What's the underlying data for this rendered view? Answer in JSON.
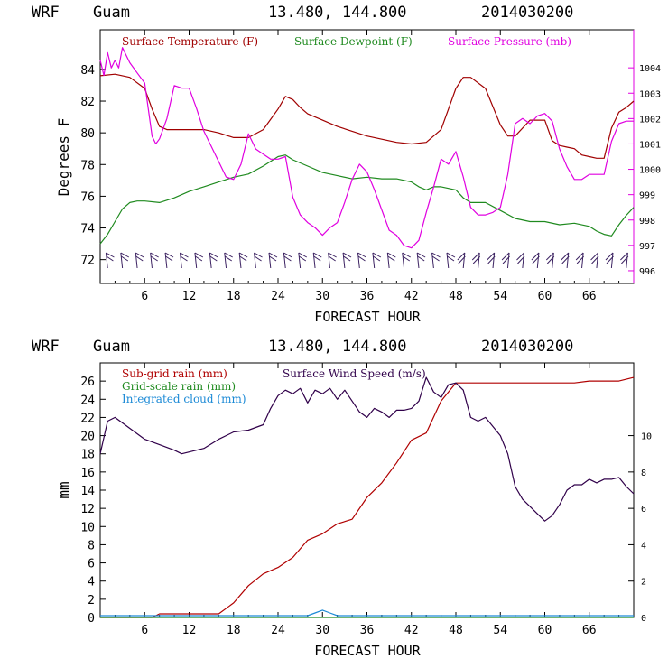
{
  "colors": {
    "temperature": "#a00000",
    "dewpoint": "#1f8a1f",
    "pressure": "#e000e0",
    "subgrid": "#b00000",
    "gridscale": "#1f8a1f",
    "cloud": "#1c8ad6",
    "wind": "#30004a",
    "wind_barb": "#3a2060"
  },
  "chart_data": [
    {
      "type": "line",
      "header": {
        "model": "WRF",
        "location": "Guam",
        "coords": "13.480, 144.800",
        "init": "2014030200"
      },
      "xlabel": "FORECAST HOUR",
      "ylabel": "Degrees F",
      "xlim": [
        0,
        72
      ],
      "ylim": [
        70.5,
        86.5
      ],
      "y2lim": [
        995.5,
        1005.5
      ],
      "xticks": [
        "6",
        "12",
        "18",
        "24",
        "30",
        "36",
        "42",
        "48",
        "54",
        "60",
        "66"
      ],
      "yticks": [
        "72",
        "74",
        "76",
        "78",
        "80",
        "82",
        "84"
      ],
      "y2ticks": [
        "996",
        "997",
        "998",
        "999",
        "1000",
        "1001",
        "1002",
        "1003",
        "1004"
      ],
      "legend": [
        "Surface Temperature (F)",
        "Surface Dewpoint (F)",
        "Surface Pressure (mb)"
      ],
      "series": [
        {
          "name": "Surface Temperature (F)",
          "axis": "left",
          "x": [
            0,
            2,
            4,
            6,
            7,
            8,
            9,
            10,
            12,
            14,
            16,
            18,
            20,
            22,
            24,
            25,
            26,
            27,
            28,
            30,
            32,
            34,
            36,
            38,
            40,
            42,
            44,
            46,
            47,
            48,
            49,
            50,
            52,
            54,
            55,
            56,
            58,
            60,
            61,
            62,
            63,
            64,
            65,
            66,
            67,
            68,
            69,
            70,
            71,
            72
          ],
          "y": [
            83.6,
            83.7,
            83.5,
            82.8,
            81.5,
            80.4,
            80.2,
            80.2,
            80.2,
            80.2,
            80,
            79.7,
            79.7,
            80.2,
            81.5,
            82.3,
            82.1,
            81.6,
            81.2,
            80.8,
            80.4,
            80.1,
            79.8,
            79.6,
            79.4,
            79.3,
            79.4,
            80.2,
            81.5,
            82.8,
            83.5,
            83.5,
            82.8,
            80.5,
            79.8,
            79.8,
            80.8,
            80.8,
            79.5,
            79.2,
            79.1,
            79,
            78.6,
            78.5,
            78.4,
            78.4,
            80.3,
            81.3,
            81.6,
            82
          ]
        },
        {
          "name": "Surface Dewpoint (F)",
          "axis": "left",
          "x": [
            0,
            1,
            2,
            3,
            4,
            5,
            6,
            8,
            10,
            12,
            14,
            16,
            18,
            20,
            22,
            24,
            25,
            26,
            27,
            28,
            30,
            32,
            34,
            36,
            38,
            40,
            42,
            43,
            44,
            45,
            46,
            48,
            49,
            50,
            52,
            54,
            56,
            58,
            60,
            62,
            64,
            66,
            67,
            68,
            69,
            70,
            71,
            72
          ],
          "y": [
            73,
            73.6,
            74.4,
            75.2,
            75.6,
            75.7,
            75.7,
            75.6,
            75.9,
            76.3,
            76.6,
            76.9,
            77.2,
            77.4,
            77.9,
            78.5,
            78.6,
            78.3,
            78.1,
            77.9,
            77.5,
            77.3,
            77.1,
            77.2,
            77.1,
            77.1,
            76.9,
            76.6,
            76.4,
            76.6,
            76.6,
            76.4,
            75.9,
            75.6,
            75.6,
            75.1,
            74.6,
            74.4,
            74.4,
            74.2,
            74.3,
            74.1,
            73.8,
            73.6,
            73.5,
            74.2,
            74.8,
            75.3
          ]
        },
        {
          "name": "Surface Pressure (mb)",
          "axis": "right",
          "x": [
            0,
            0.5,
            1,
            1.5,
            2,
            2.5,
            3,
            4,
            5,
            6,
            7,
            7.5,
            8,
            9,
            10,
            11,
            12,
            13,
            14,
            15,
            16,
            17,
            18,
            19,
            20,
            21,
            22,
            23,
            24,
            25,
            26,
            27,
            28,
            29,
            30,
            31,
            32,
            33,
            34,
            35,
            36,
            37,
            38,
            39,
            40,
            41,
            42,
            43,
            44,
            45,
            46,
            47,
            48,
            49,
            50,
            51,
            52,
            53,
            54,
            55,
            56,
            57,
            58,
            59,
            60,
            61,
            62,
            63,
            64,
            65,
            66,
            67,
            68,
            69,
            70,
            71,
            72
          ],
          "y": [
            1004.3,
            1003.7,
            1004.6,
            1004.0,
            1004.3,
            1004.0,
            1004.8,
            1004.2,
            1003.8,
            1003.4,
            1001.3,
            1001.0,
            1001.2,
            1002.0,
            1003.3,
            1003.2,
            1003.2,
            1002.4,
            1001.5,
            1000.9,
            1000.3,
            999.7,
            999.6,
            1000.2,
            1001.4,
            1000.8,
            1000.6,
            1000.4,
            1000.4,
            1000.5,
            998.9,
            998.2,
            997.9,
            997.7,
            997.4,
            997.7,
            997.9,
            998.7,
            999.6,
            1000.2,
            999.9,
            999.2,
            998.4,
            997.6,
            997.4,
            997.0,
            996.9,
            997.2,
            998.3,
            999.3,
            1000.4,
            1000.2,
            1000.7,
            999.7,
            998.5,
            998.2,
            998.2,
            998.3,
            998.5,
            999.8,
            1001.8,
            1002.0,
            1001.8,
            1002.1,
            1002.2,
            1001.9,
            1000.8,
            1000.1,
            999.6,
            999.6,
            999.8,
            999.8,
            999.8,
            1001.1,
            1001.8,
            1001.9,
            1001.9
          ]
        }
      ]
    },
    {
      "type": "line",
      "header": {
        "model": "WRF",
        "location": "Guam",
        "coords": "13.480, 144.800",
        "init": "2014030200"
      },
      "xlabel": "FORECAST HOUR",
      "ylabel": "mm",
      "xlim": [
        0,
        72
      ],
      "ylim": [
        0,
        28
      ],
      "y2lim": [
        0,
        14
      ],
      "xticks": [
        "6",
        "12",
        "18",
        "24",
        "30",
        "36",
        "42",
        "48",
        "54",
        "60",
        "66"
      ],
      "yticks": [
        "0",
        "2",
        "4",
        "6",
        "8",
        "10",
        "12",
        "14",
        "16",
        "18",
        "20",
        "22",
        "24",
        "26"
      ],
      "y2ticks": [
        "0",
        "2",
        "4",
        "6",
        "8",
        "10"
      ],
      "legend": [
        "Sub-grid rain (mm)",
        "Surface Wind Speed (m/s)",
        "Grid-scale rain (mm)",
        "Integrated cloud (mm)"
      ],
      "series": [
        {
          "name": "Sub-grid rain (mm)",
          "axis": "left",
          "x": [
            0,
            7,
            8,
            12,
            16,
            18,
            20,
            22,
            24,
            26,
            28,
            30,
            32,
            34,
            36,
            38,
            40,
            42,
            44,
            46,
            48,
            50,
            52,
            54,
            56,
            58,
            60,
            62,
            64,
            66,
            68,
            70,
            72
          ],
          "y": [
            0,
            0,
            0.4,
            0.4,
            0.4,
            1.6,
            3.5,
            4.8,
            5.5,
            6.6,
            8.5,
            9.2,
            10.3,
            10.8,
            13.2,
            14.8,
            17,
            19.5,
            20.3,
            23.8,
            25.8,
            25.8,
            25.8,
            25.8,
            25.8,
            25.8,
            25.8,
            25.8,
            25.8,
            26,
            26,
            26,
            26.4
          ]
        },
        {
          "name": "Grid-scale rain (mm)",
          "axis": "left",
          "x": [
            0,
            72
          ],
          "y": [
            0,
            0
          ]
        },
        {
          "name": "Integrated cloud (mm)",
          "axis": "left",
          "x": [
            0,
            28,
            29,
            30,
            31,
            32,
            72
          ],
          "y": [
            0.2,
            0.2,
            0.5,
            0.8,
            0.5,
            0.2,
            0.2
          ]
        },
        {
          "name": "Surface Wind Speed (m/s)",
          "axis": "right",
          "x": [
            0,
            1,
            2,
            4,
            6,
            8,
            10,
            11,
            12,
            14,
            16,
            18,
            20,
            22,
            23,
            24,
            25,
            26,
            27,
            28,
            29,
            30,
            31,
            32,
            33,
            34,
            35,
            36,
            37,
            38,
            39,
            40,
            41,
            42,
            43,
            44,
            45,
            46,
            47,
            48,
            49,
            50,
            51,
            52,
            54,
            55,
            56,
            57,
            58,
            59,
            60,
            61,
            62,
            63,
            64,
            65,
            66,
            67,
            68,
            69,
            70,
            71,
            72
          ],
          "y": [
            9.0,
            10.8,
            11.0,
            10.4,
            9.8,
            9.5,
            9.2,
            9.0,
            9.1,
            9.3,
            9.8,
            10.2,
            10.3,
            10.6,
            11.5,
            12.2,
            12.5,
            12.3,
            12.6,
            11.8,
            12.5,
            12.3,
            12.6,
            12.0,
            12.5,
            11.9,
            11.3,
            11.0,
            11.5,
            11.3,
            11.0,
            11.4,
            11.4,
            11.5,
            11.9,
            13.2,
            12.4,
            12.1,
            12.8,
            12.9,
            12.5,
            11.0,
            10.8,
            11.0,
            10.0,
            9.0,
            7.2,
            6.5,
            6.1,
            5.7,
            5.3,
            5.6,
            6.2,
            7.0,
            7.3,
            7.3,
            7.6,
            7.4,
            7.6,
            7.6,
            7.7,
            7.2,
            6.8
          ]
        }
      ]
    }
  ]
}
